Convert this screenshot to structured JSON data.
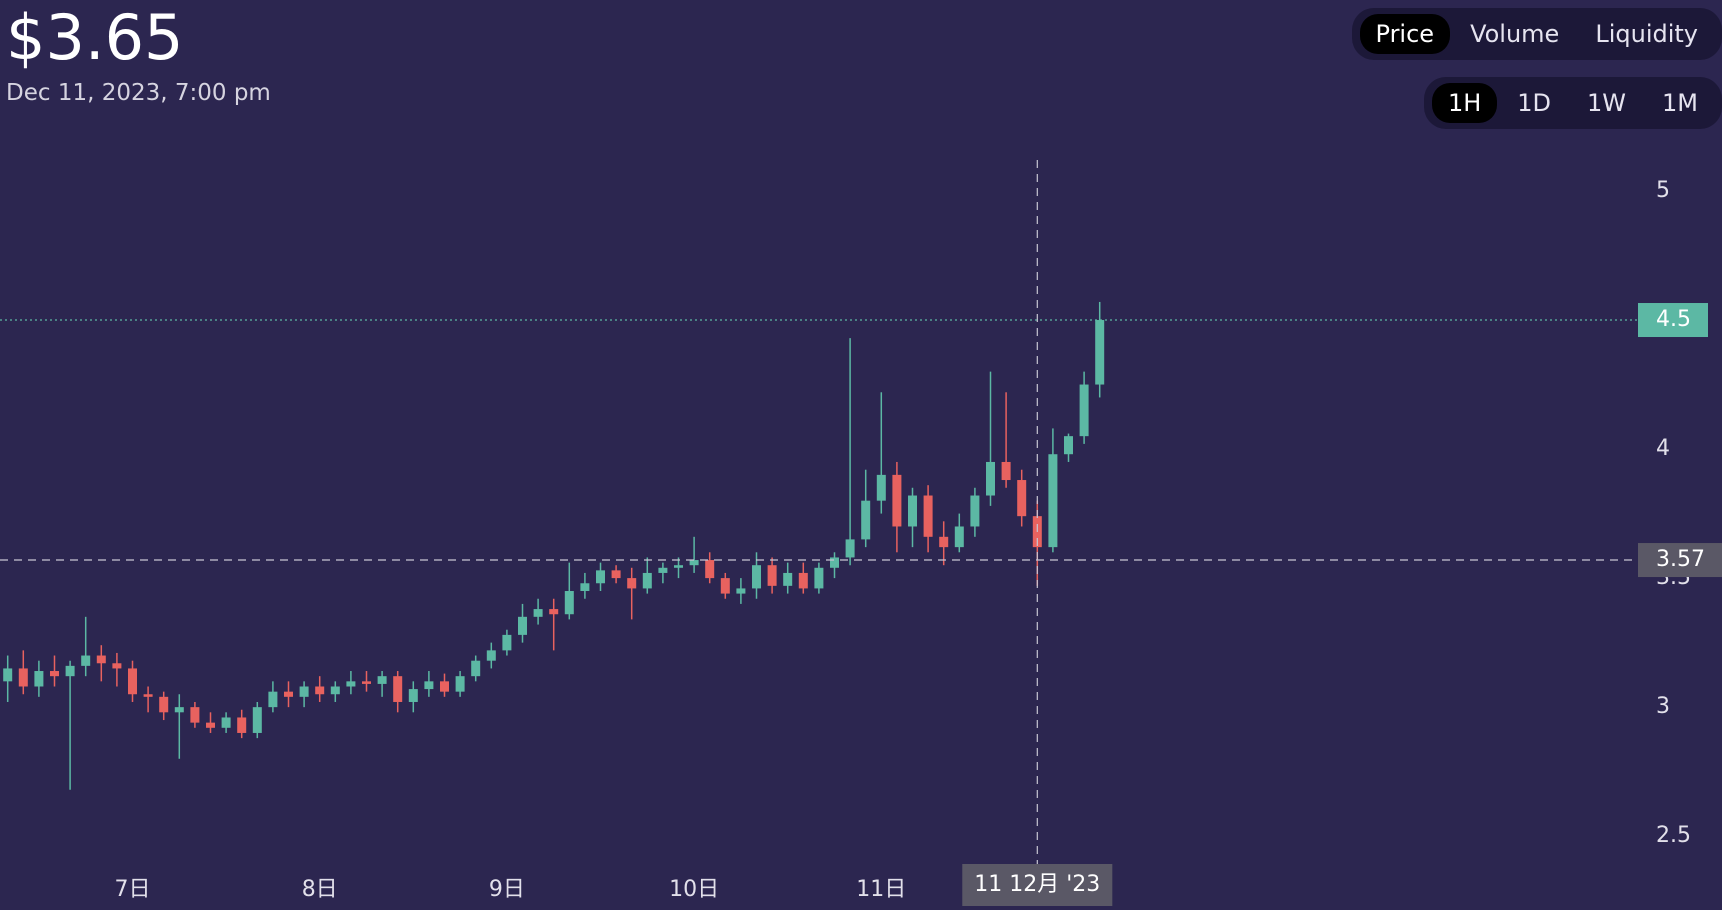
{
  "header": {
    "price": "$3.65",
    "date": "Dec 11, 2023, 7:00 pm"
  },
  "tabs": {
    "metric": [
      "Price",
      "Volume",
      "Liquidity"
    ],
    "interval": [
      "1H",
      "1D",
      "1W",
      "1M"
    ]
  },
  "chart_data": {
    "type": "candlestick",
    "categories": [
      null,
      null,
      null,
      null,
      null,
      null,
      null,
      null,
      "7日",
      null,
      null,
      null,
      null,
      null,
      null,
      null,
      null,
      null,
      null,
      null,
      "8日",
      null,
      null,
      null,
      null,
      null,
      null,
      null,
      null,
      null,
      null,
      null,
      "9日",
      null,
      null,
      null,
      null,
      null,
      null,
      null,
      null,
      null,
      null,
      null,
      "10日",
      null,
      null,
      null,
      null,
      null,
      null,
      null,
      null,
      null,
      null,
      null,
      "11日",
      null,
      null,
      null,
      null,
      null,
      null,
      null,
      null,
      null,
      null,
      null,
      null,
      null,
      null
    ],
    "open": [
      3.1,
      3.15,
      3.08,
      3.14,
      3.12,
      3.16,
      3.2,
      3.17,
      3.15,
      3.05,
      3.04,
      2.98,
      3.0,
      2.94,
      2.92,
      2.96,
      2.9,
      3.0,
      3.06,
      3.04,
      3.08,
      3.05,
      3.08,
      3.1,
      3.09,
      3.12,
      3.02,
      3.07,
      3.1,
      3.06,
      3.12,
      3.18,
      3.22,
      3.28,
      3.35,
      3.38,
      3.36,
      3.45,
      3.48,
      3.53,
      3.5,
      3.46,
      3.52,
      3.54,
      3.55,
      3.57,
      3.5,
      3.44,
      3.46,
      3.55,
      3.47,
      3.52,
      3.46,
      3.54,
      3.58,
      3.65,
      3.8,
      3.9,
      3.7,
      3.82,
      3.66,
      3.62,
      3.7,
      3.82,
      3.95,
      3.88,
      3.74,
      3.62,
      3.98,
      4.05,
      4.25
    ],
    "high": [
      3.2,
      3.22,
      3.18,
      3.2,
      3.18,
      3.35,
      3.24,
      3.21,
      3.18,
      3.08,
      3.06,
      3.05,
      3.02,
      2.98,
      2.98,
      2.99,
      3.02,
      3.1,
      3.1,
      3.1,
      3.12,
      3.1,
      3.14,
      3.14,
      3.14,
      3.14,
      3.1,
      3.14,
      3.13,
      3.14,
      3.2,
      3.25,
      3.3,
      3.4,
      3.42,
      3.42,
      3.56,
      3.52,
      3.56,
      3.55,
      3.54,
      3.58,
      3.56,
      3.58,
      3.66,
      3.6,
      3.52,
      3.5,
      3.6,
      3.58,
      3.56,
      3.56,
      3.56,
      3.6,
      4.43,
      3.92,
      4.22,
      3.95,
      3.85,
      3.86,
      3.72,
      3.75,
      3.85,
      4.3,
      4.22,
      3.92,
      3.8,
      4.08,
      4.06,
      4.3,
      4.57
    ],
    "low": [
      3.02,
      3.05,
      3.04,
      3.08,
      2.68,
      3.12,
      3.1,
      3.08,
      3.02,
      2.98,
      2.95,
      2.8,
      2.92,
      2.9,
      2.9,
      2.88,
      2.88,
      2.98,
      3.0,
      3.0,
      3.02,
      3.02,
      3.05,
      3.06,
      3.04,
      2.98,
      2.98,
      3.04,
      3.04,
      3.04,
      3.1,
      3.15,
      3.2,
      3.25,
      3.32,
      3.22,
      3.34,
      3.42,
      3.45,
      3.48,
      3.34,
      3.44,
      3.48,
      3.5,
      3.52,
      3.48,
      3.42,
      3.4,
      3.42,
      3.44,
      3.44,
      3.44,
      3.44,
      3.5,
      3.55,
      3.62,
      3.75,
      3.6,
      3.62,
      3.6,
      3.55,
      3.6,
      3.66,
      3.78,
      3.85,
      3.7,
      3.47,
      3.6,
      3.95,
      4.02,
      4.2
    ],
    "close": [
      3.15,
      3.08,
      3.14,
      3.12,
      3.16,
      3.2,
      3.17,
      3.15,
      3.05,
      3.04,
      2.98,
      3.0,
      2.94,
      2.92,
      2.96,
      2.9,
      3.0,
      3.06,
      3.04,
      3.08,
      3.05,
      3.08,
      3.1,
      3.09,
      3.12,
      3.02,
      3.07,
      3.1,
      3.06,
      3.12,
      3.18,
      3.22,
      3.28,
      3.35,
      3.38,
      3.36,
      3.45,
      3.48,
      3.53,
      3.5,
      3.46,
      3.52,
      3.54,
      3.55,
      3.57,
      3.5,
      3.44,
      3.46,
      3.55,
      3.47,
      3.52,
      3.46,
      3.54,
      3.58,
      3.65,
      3.8,
      3.9,
      3.7,
      3.82,
      3.66,
      3.62,
      3.7,
      3.82,
      3.95,
      3.88,
      3.74,
      3.62,
      3.98,
      4.05,
      4.25,
      4.5
    ],
    "up_color": "#5cb8a4",
    "down_color": "#e8625f",
    "ylim": [
      2.4,
      5.12
    ],
    "yticks": [
      2.5,
      3,
      3.5,
      4,
      4.5,
      5
    ],
    "last_price": 4.5,
    "crosshair": {
      "index": 66,
      "price": 3.57,
      "x_label": "11 12月 '23"
    }
  }
}
